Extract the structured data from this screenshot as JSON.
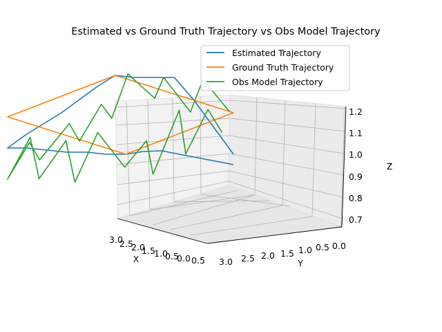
{
  "chart_data": {
    "type": "line",
    "projection": "3d",
    "title": "Estimated vs Ground Truth Trajectory vs Obs Model Trajectory",
    "xlabel": "X",
    "ylabel": "Y",
    "zlabel": "Z",
    "xlim": [
      -0.5,
      3.2
    ],
    "ylim": [
      -0.2,
      3.2
    ],
    "zlim": [
      0.65,
      1.22
    ],
    "xticks": [
      "3.0",
      "2.5",
      "2.0",
      "1.5",
      "1.0",
      "0.5",
      "0.0",
      "0.5"
    ],
    "yticks": [
      "3.0",
      "2.5",
      "2.0",
      "1.5",
      "1.0",
      "0.5",
      "0.0"
    ],
    "zticks": [
      "0.7",
      "0.8",
      "0.9",
      "1.0",
      "1.1",
      "1.2"
    ],
    "grid": true,
    "legend": "upper-right",
    "colors": {
      "estimated": "#1f77b4",
      "ground_truth": "#ff7f0e",
      "obs_model": "#2ca02c"
    },
    "series": [
      {
        "name": "Estimated Trajectory",
        "color": "#1f77b4",
        "points": [
          [
            0.0,
            0.0,
            0.75
          ],
          [
            0.5,
            0.0,
            0.8
          ],
          [
            1.0,
            0.0,
            0.85
          ],
          [
            1.5,
            0.0,
            0.9
          ],
          [
            2.0,
            0.0,
            0.95
          ],
          [
            2.5,
            0.0,
            0.98
          ],
          [
            3.0,
            0.0,
            1.0
          ],
          [
            3.0,
            0.5,
            0.97
          ],
          [
            3.0,
            1.0,
            0.95
          ],
          [
            3.0,
            1.5,
            0.92
          ],
          [
            3.0,
            2.0,
            0.9
          ],
          [
            3.0,
            2.5,
            0.88
          ],
          [
            3.0,
            3.0,
            0.85
          ],
          [
            2.5,
            3.0,
            0.88
          ],
          [
            2.0,
            3.0,
            0.9
          ],
          [
            1.5,
            3.0,
            0.92
          ],
          [
            1.0,
            3.0,
            0.95
          ],
          [
            0.5,
            3.0,
            0.98
          ],
          [
            0.0,
            3.0,
            1.0
          ],
          [
            0.0,
            2.5,
            1.02
          ],
          [
            0.0,
            2.0,
            1.05
          ],
          [
            0.0,
            1.5,
            1.08
          ],
          [
            0.0,
            1.0,
            1.0
          ],
          [
            0.0,
            0.5,
            0.9
          ],
          [
            0.0,
            0.0,
            0.8
          ]
        ]
      },
      {
        "name": "Ground Truth Trajectory",
        "color": "#ff7f0e",
        "points": [
          [
            0.0,
            0.0,
            1.0
          ],
          [
            3.0,
            0.0,
            1.0
          ],
          [
            3.0,
            3.0,
            1.0
          ],
          [
            0.0,
            3.0,
            1.0
          ],
          [
            0.0,
            0.0,
            1.0
          ]
        ]
      },
      {
        "name": "Obs Model Trajectory",
        "color": "#2ca02c",
        "points": [
          [
            0.1,
            0.2,
            0.9
          ],
          [
            0.6,
            0.1,
            1.05
          ],
          [
            1.0,
            0.3,
            0.85
          ],
          [
            1.4,
            0.1,
            1.1
          ],
          [
            1.8,
            0.4,
            0.8
          ],
          [
            2.2,
            0.2,
            1.0
          ],
          [
            2.7,
            0.3,
            0.9
          ],
          [
            2.9,
            0.8,
            1.05
          ],
          [
            3.1,
            1.2,
            0.8
          ],
          [
            2.8,
            1.7,
            0.95
          ],
          [
            3.0,
            2.2,
            0.75
          ],
          [
            2.7,
            2.7,
            0.9
          ],
          [
            3.0,
            3.0,
            0.7
          ],
          [
            2.5,
            2.9,
            0.85
          ],
          [
            2.0,
            3.1,
            0.72
          ],
          [
            1.5,
            2.8,
            0.88
          ],
          [
            1.0,
            3.0,
            0.75
          ],
          [
            0.5,
            2.9,
            0.9
          ],
          [
            0.1,
            3.0,
            0.8
          ],
          [
            0.2,
            2.5,
            1.05
          ],
          [
            0.0,
            2.0,
            0.95
          ],
          [
            0.3,
            1.5,
            1.1
          ],
          [
            0.1,
            1.0,
            0.95
          ],
          [
            0.3,
            0.5,
            1.15
          ],
          [
            0.0,
            0.1,
            1.0
          ]
        ]
      }
    ]
  }
}
